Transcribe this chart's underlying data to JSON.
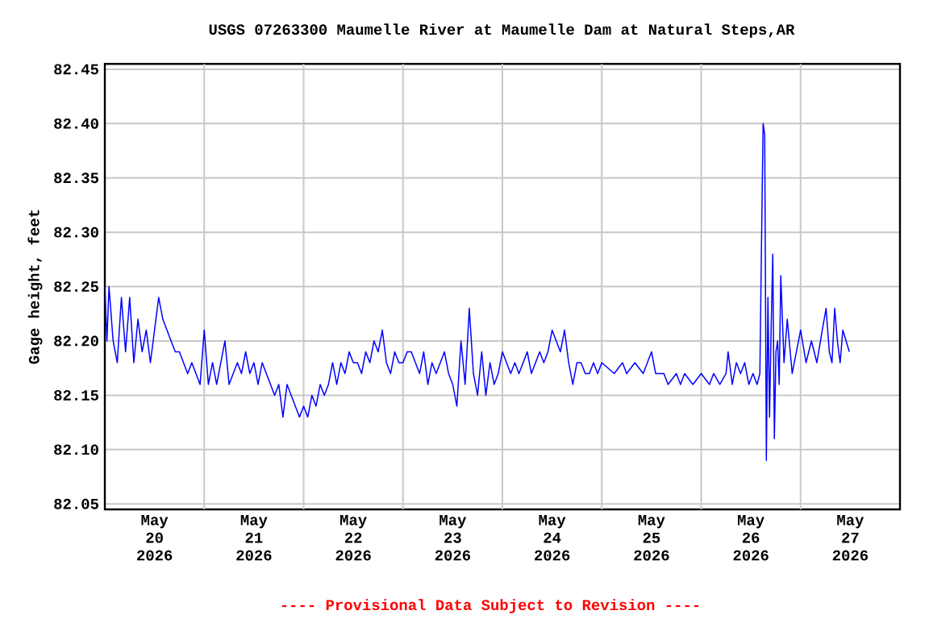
{
  "chart_data": {
    "type": "line",
    "title": "USGS 07263300 Maumelle River at Maumelle Dam at Natural Steps,AR",
    "ylabel": "Gage height, feet",
    "annotations": [
      "---- Provisional Data Subject to Revision ----"
    ],
    "x": [
      "2026-05-20T00:00",
      "2026-05-20T00:30",
      "2026-05-20T01:00",
      "2026-05-20T02:00",
      "2026-05-20T03:00",
      "2026-05-20T04:00",
      "2026-05-20T05:00",
      "2026-05-20T06:00",
      "2026-05-20T07:00",
      "2026-05-20T08:00",
      "2026-05-20T09:00",
      "2026-05-20T10:00",
      "2026-05-20T11:00",
      "2026-05-20T12:00",
      "2026-05-20T13:00",
      "2026-05-20T14:00",
      "2026-05-20T15:00",
      "2026-05-20T16:00",
      "2026-05-20T17:00",
      "2026-05-20T18:00",
      "2026-05-20T19:00",
      "2026-05-20T20:00",
      "2026-05-20T21:00",
      "2026-05-20T22:00",
      "2026-05-20T23:00",
      "2026-05-21T00:00",
      "2026-05-21T01:00",
      "2026-05-21T02:00",
      "2026-05-21T03:00",
      "2026-05-21T04:00",
      "2026-05-21T05:00",
      "2026-05-21T06:00",
      "2026-05-21T07:00",
      "2026-05-21T08:00",
      "2026-05-21T09:00",
      "2026-05-21T10:00",
      "2026-05-21T11:00",
      "2026-05-21T12:00",
      "2026-05-21T13:00",
      "2026-05-21T14:00",
      "2026-05-21T15:00",
      "2026-05-21T16:00",
      "2026-05-21T17:00",
      "2026-05-21T18:00",
      "2026-05-21T19:00",
      "2026-05-21T20:00",
      "2026-05-21T21:00",
      "2026-05-21T22:00",
      "2026-05-21T23:00",
      "2026-05-22T00:00",
      "2026-05-22T01:00",
      "2026-05-22T02:00",
      "2026-05-22T03:00",
      "2026-05-22T04:00",
      "2026-05-22T05:00",
      "2026-05-22T06:00",
      "2026-05-22T07:00",
      "2026-05-22T08:00",
      "2026-05-22T09:00",
      "2026-05-22T10:00",
      "2026-05-22T11:00",
      "2026-05-22T12:00",
      "2026-05-22T13:00",
      "2026-05-22T14:00",
      "2026-05-22T15:00",
      "2026-05-22T16:00",
      "2026-05-22T17:00",
      "2026-05-22T18:00",
      "2026-05-22T19:00",
      "2026-05-22T20:00",
      "2026-05-22T21:00",
      "2026-05-22T22:00",
      "2026-05-22T23:00",
      "2026-05-23T00:00",
      "2026-05-23T01:00",
      "2026-05-23T02:00",
      "2026-05-23T03:00",
      "2026-05-23T04:00",
      "2026-05-23T05:00",
      "2026-05-23T06:00",
      "2026-05-23T07:00",
      "2026-05-23T08:00",
      "2026-05-23T09:00",
      "2026-05-23T10:00",
      "2026-05-23T11:00",
      "2026-05-23T12:00",
      "2026-05-23T13:00",
      "2026-05-23T14:00",
      "2026-05-23T15:00",
      "2026-05-23T16:00",
      "2026-05-23T17:00",
      "2026-05-23T18:00",
      "2026-05-23T19:00",
      "2026-05-23T20:00",
      "2026-05-23T21:00",
      "2026-05-23T22:00",
      "2026-05-23T23:00",
      "2026-05-24T00:00",
      "2026-05-24T01:00",
      "2026-05-24T02:00",
      "2026-05-24T03:00",
      "2026-05-24T04:00",
      "2026-05-24T05:00",
      "2026-05-24T06:00",
      "2026-05-24T07:00",
      "2026-05-24T08:00",
      "2026-05-24T09:00",
      "2026-05-24T10:00",
      "2026-05-24T11:00",
      "2026-05-24T12:00",
      "2026-05-24T13:00",
      "2026-05-24T14:00",
      "2026-05-24T15:00",
      "2026-05-24T16:00",
      "2026-05-24T17:00",
      "2026-05-24T18:00",
      "2026-05-24T19:00",
      "2026-05-24T20:00",
      "2026-05-24T21:00",
      "2026-05-24T22:00",
      "2026-05-24T23:00",
      "2026-05-25T00:00",
      "2026-05-25T03:00",
      "2026-05-25T05:00",
      "2026-05-25T06:00",
      "2026-05-25T08:00",
      "2026-05-25T10:00",
      "2026-05-25T12:00",
      "2026-05-25T13:00",
      "2026-05-25T15:00",
      "2026-05-25T16:00",
      "2026-05-25T18:00",
      "2026-05-25T19:00",
      "2026-05-25T20:00",
      "2026-05-25T22:00",
      "2026-05-26T00:00",
      "2026-05-26T02:00",
      "2026-05-26T03:00",
      "2026-05-26T04:30",
      "2026-05-26T06:00",
      "2026-05-26T06:30",
      "2026-05-26T07:30",
      "2026-05-26T08:30",
      "2026-05-26T09:30",
      "2026-05-26T10:30",
      "2026-05-26T11:30",
      "2026-05-26T12:30",
      "2026-05-26T13:30",
      "2026-05-26T14:10",
      "2026-05-26T14:34",
      "2026-05-26T14:57",
      "2026-05-26T15:20",
      "2026-05-26T15:44",
      "2026-05-26T16:07",
      "2026-05-26T16:30",
      "2026-05-26T16:53",
      "2026-05-26T17:17",
      "2026-05-26T17:40",
      "2026-05-26T18:03",
      "2026-05-26T18:27",
      "2026-05-26T18:50",
      "2026-05-26T19:13",
      "2026-05-26T20:00",
      "2026-05-26T20:47",
      "2026-05-26T21:58",
      "2026-05-27T00:00",
      "2026-05-27T01:19",
      "2026-05-27T02:37",
      "2026-05-27T03:56",
      "2026-05-27T05:14",
      "2026-05-27T06:09",
      "2026-05-27T06:56",
      "2026-05-27T07:35",
      "2026-05-27T08:14",
      "2026-05-27T08:53",
      "2026-05-27T09:33",
      "2026-05-27T10:12",
      "2026-05-27T10:59",
      "2026-05-27T11:46"
    ],
    "values": [
      82.25,
      82.2,
      82.25,
      82.2,
      82.18,
      82.24,
      82.19,
      82.24,
      82.18,
      82.22,
      82.19,
      82.21,
      82.18,
      82.21,
      82.24,
      82.22,
      82.21,
      82.2,
      82.19,
      82.19,
      82.18,
      82.17,
      82.18,
      82.17,
      82.16,
      82.21,
      82.16,
      82.18,
      82.16,
      82.18,
      82.2,
      82.16,
      82.17,
      82.18,
      82.17,
      82.19,
      82.17,
      82.18,
      82.16,
      82.18,
      82.17,
      82.16,
      82.15,
      82.16,
      82.13,
      82.16,
      82.15,
      82.14,
      82.13,
      82.14,
      82.13,
      82.15,
      82.14,
      82.16,
      82.15,
      82.16,
      82.18,
      82.16,
      82.18,
      82.17,
      82.19,
      82.18,
      82.18,
      82.17,
      82.19,
      82.18,
      82.2,
      82.19,
      82.21,
      82.18,
      82.17,
      82.19,
      82.18,
      82.18,
      82.19,
      82.19,
      82.18,
      82.17,
      82.19,
      82.16,
      82.18,
      82.17,
      82.18,
      82.19,
      82.17,
      82.16,
      82.14,
      82.2,
      82.16,
      82.23,
      82.17,
      82.15,
      82.19,
      82.15,
      82.18,
      82.16,
      82.17,
      82.19,
      82.18,
      82.17,
      82.18,
      82.17,
      82.18,
      82.19,
      82.17,
      82.18,
      82.19,
      82.18,
      82.19,
      82.21,
      82.2,
      82.19,
      82.21,
      82.18,
      82.16,
      82.18,
      82.18,
      82.17,
      82.17,
      82.18,
      82.17,
      82.18,
      82.17,
      82.18,
      82.17,
      82.18,
      82.17,
      82.19,
      82.17,
      82.17,
      82.16,
      82.17,
      82.16,
      82.17,
      82.16,
      82.17,
      82.16,
      82.17,
      82.16,
      82.17,
      82.19,
      82.16,
      82.18,
      82.17,
      82.18,
      82.16,
      82.17,
      82.16,
      82.17,
      82.29,
      82.4,
      82.39,
      82.09,
      82.24,
      82.13,
      82.21,
      82.28,
      82.11,
      82.19,
      82.2,
      82.16,
      82.26,
      82.18,
      82.22,
      82.17,
      82.21,
      82.18,
      82.2,
      82.18,
      82.21,
      82.23,
      82.19,
      82.18,
      82.23,
      82.2,
      82.18,
      82.21,
      82.2,
      82.19
    ],
    "color": "#0000ff",
    "marker": "none",
    "line_style": "solid",
    "grid": true,
    "xlim": [
      "2026-05-20T00:00",
      "2026-05-28T00:00"
    ],
    "xticks": [
      {
        "value": "2026-05-20T12:00",
        "label": "May 20 2026"
      },
      {
        "value": "2026-05-21T12:00",
        "label": "May 21 2026"
      },
      {
        "value": "2026-05-22T12:00",
        "label": "May 22 2026"
      },
      {
        "value": "2026-05-23T12:00",
        "label": "May 23 2026"
      },
      {
        "value": "2026-05-24T12:00",
        "label": "May 24 2026"
      },
      {
        "value": "2026-05-25T12:00",
        "label": "May 25 2026"
      },
      {
        "value": "2026-05-26T12:00",
        "label": "May 26 2026"
      },
      {
        "value": "2026-05-27T12:00",
        "label": "May 27 2026"
      },
      {
        "value": "2026-05-21T00:00",
        "label": null
      },
      {
        "value": "2026-05-22T00:00",
        "label": null
      },
      {
        "value": "2026-05-23T00:00",
        "label": null
      },
      {
        "value": "2026-05-24T00:00",
        "label": null
      },
      {
        "value": "2026-05-25T00:00",
        "label": null
      },
      {
        "value": "2026-05-26T00:00",
        "label": null
      },
      {
        "value": "2026-05-27T00:00",
        "label": null
      }
    ],
    "ylim": [
      82.045,
      82.455
    ],
    "yticks": [
      {
        "value": 82.05,
        "label": "82.05"
      },
      {
        "value": 82.1,
        "label": "82.10"
      },
      {
        "value": 82.15,
        "label": "82.15"
      },
      {
        "value": 82.2,
        "label": "82.20"
      },
      {
        "value": 82.25,
        "label": "82.25"
      },
      {
        "value": 82.3,
        "label": "82.30"
      },
      {
        "value": 82.35,
        "label": "82.35"
      },
      {
        "value": 82.4,
        "label": "82.40"
      },
      {
        "value": 82.45,
        "label": "82.45"
      }
    ]
  }
}
